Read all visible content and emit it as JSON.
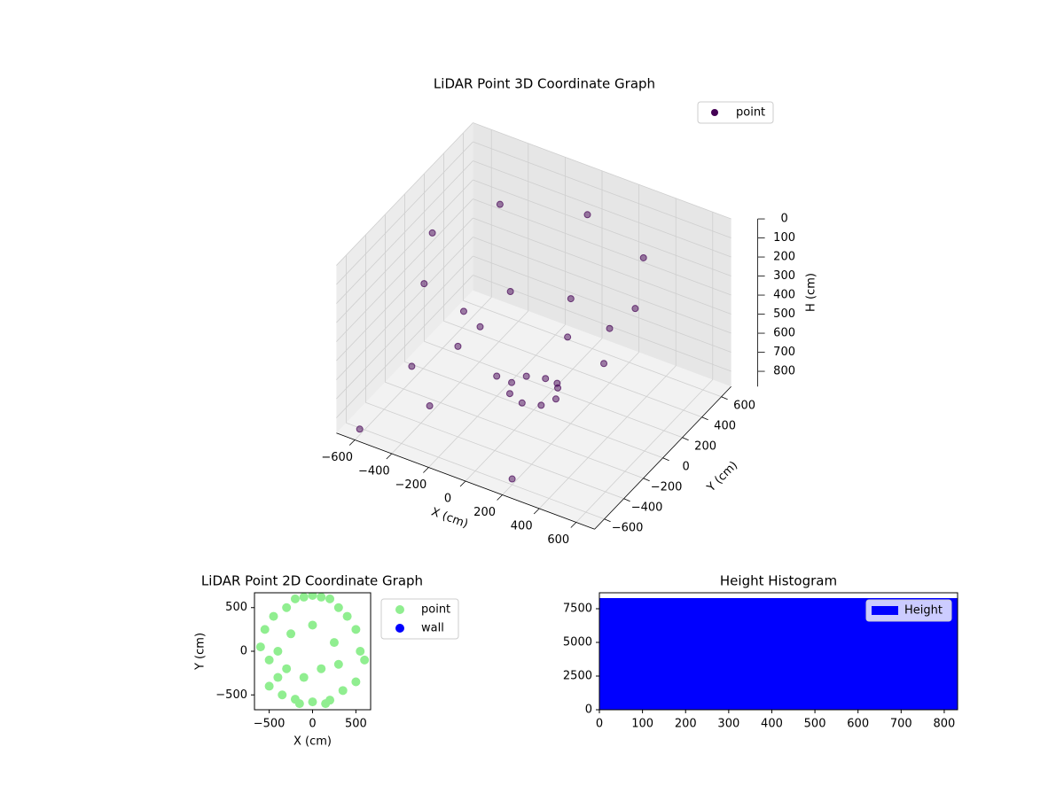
{
  "chart_data": [
    {
      "type": "scatter3d",
      "title": "LiDAR Point 3D Coordinate Graph",
      "xlabel": "X (cm)",
      "ylabel": "Y (cm)",
      "zlabel": "H (cm)",
      "xlim": [
        -700,
        700
      ],
      "ylim": [
        -700,
        700
      ],
      "zlim": [
        0,
        880
      ],
      "z_inverted": true,
      "xticks": [
        {
          "value": -600,
          "label": "−600"
        },
        {
          "value": -400,
          "label": "−400"
        },
        {
          "value": -200,
          "label": "−200"
        },
        0,
        200,
        400,
        600
      ],
      "yticks": [
        {
          "value": -600,
          "label": "−600"
        },
        {
          "value": -400,
          "label": "−400"
        },
        {
          "value": -200,
          "label": "−200"
        },
        0,
        200,
        400,
        600
      ],
      "zticks": [
        0,
        100,
        200,
        300,
        400,
        500,
        600,
        700,
        800
      ],
      "grid": true,
      "legend": "upper right",
      "series": [
        {
          "name": "point",
          "color": "#440154",
          "x": [
            550,
            389,
            0,
            -389,
            -550,
            -389,
            0,
            389,
            380,
            269,
            0,
            -269,
            -380,
            -269,
            0,
            269,
            120,
            85,
            0,
            -85,
            -120,
            -85,
            0,
            85,
            -600,
            -300,
            200,
            -450
          ],
          "y": [
            0,
            389,
            550,
            389,
            0,
            -389,
            -550,
            -389,
            0,
            269,
            380,
            269,
            0,
            -269,
            -380,
            -269,
            0,
            85,
            120,
            85,
            0,
            -85,
            -120,
            -85,
            -650,
            -500,
            -600,
            -400
          ],
          "z": [
            150,
            150,
            150,
            150,
            150,
            150,
            150,
            150,
            500,
            500,
            500,
            500,
            500,
            500,
            500,
            500,
            780,
            780,
            780,
            780,
            780,
            780,
            780,
            780,
            850,
            700,
            850,
            600
          ]
        }
      ]
    },
    {
      "type": "scatter",
      "title": "LiDAR Point 2D Coordinate Graph",
      "xlabel": "X (cm)",
      "ylabel": "Y (cm)",
      "xlim": [
        -670,
        670
      ],
      "ylim": [
        -670,
        670
      ],
      "xticks": [
        {
          "value": -500,
          "label": "−500"
        },
        0,
        500
      ],
      "yticks": [
        {
          "value": -500,
          "label": "−500"
        },
        0,
        500
      ],
      "legend": "outside right",
      "series": [
        {
          "name": "point",
          "color": "#90ee90",
          "x": [
            -600,
            -550,
            -500,
            -450,
            -400,
            -300,
            -200,
            -100,
            0,
            100,
            200,
            300,
            400,
            500,
            550,
            600,
            -350,
            -200,
            0,
            200,
            350,
            -250,
            0,
            250,
            -100,
            100,
            -500,
            500,
            -300,
            300,
            -400,
            -150,
            150
          ],
          "y": [
            50,
            250,
            -100,
            400,
            -300,
            500,
            600,
            620,
            640,
            620,
            600,
            500,
            400,
            250,
            0,
            -100,
            -500,
            -550,
            -580,
            -560,
            -450,
            200,
            300,
            100,
            -300,
            -200,
            -400,
            -350,
            -200,
            -150,
            0,
            -600,
            -600
          ]
        },
        {
          "name": "wall",
          "color": "#0000ff",
          "x": [],
          "y": []
        }
      ]
    },
    {
      "type": "histogram",
      "title": "Height Histogram",
      "legend": "upper right",
      "xlim": [
        0,
        831
      ],
      "ylim": [
        0,
        8684
      ],
      "xticks": [
        0,
        100,
        200,
        300,
        400,
        500,
        600,
        700,
        800
      ],
      "yticks": [
        0,
        2500,
        5000,
        7500
      ],
      "series": [
        {
          "name": "Height",
          "color": "#0000ff",
          "bins": [
            0,
            83,
            166,
            249,
            332,
            415,
            498,
            581,
            664,
            747,
            831
          ],
          "values": [
            8290,
            8290,
            8290,
            8290,
            8290,
            8290,
            8290,
            8290,
            8290,
            8290
          ]
        }
      ]
    }
  ]
}
